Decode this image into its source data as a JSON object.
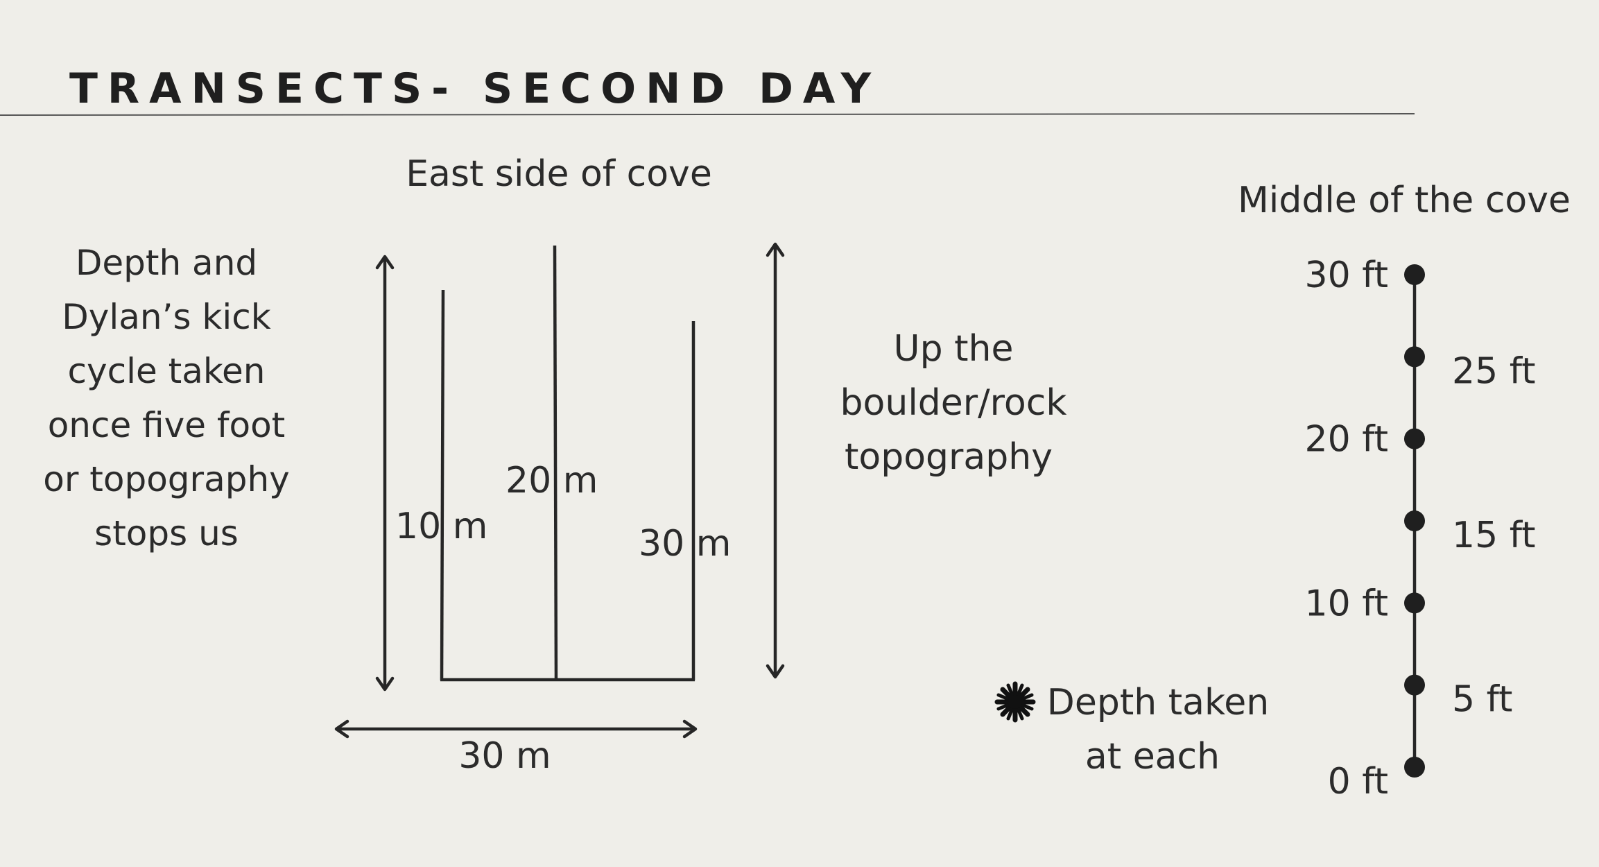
{
  "title": "TRANSECTS- SECOND DAY",
  "left_note": {
    "lines": [
      "Depth and",
      "Dylan’s kick",
      "cycle taken",
      "once five foot",
      "or topography",
      "stops us"
    ]
  },
  "east_side": {
    "heading": "East side of cove",
    "transects": [
      {
        "label": "10 m",
        "length_m": 10
      },
      {
        "label": "20 m",
        "length_m": 20
      },
      {
        "label": "30 m",
        "length_m": 30
      }
    ],
    "baseline_label": "30 m"
  },
  "middle_note": {
    "lines": [
      "Up the",
      "boulder/rock",
      "topography"
    ]
  },
  "middle_cove": {
    "heading": "Middle of the cove",
    "depth_points": [
      {
        "label": "30 ft",
        "depth_ft": 30,
        "side": "left"
      },
      {
        "label": "25 ft",
        "depth_ft": 25,
        "side": "right"
      },
      {
        "label": "20 ft",
        "depth_ft": 20,
        "side": "left"
      },
      {
        "label": "15 ft",
        "depth_ft": 15,
        "side": "right"
      },
      {
        "label": "10 ft",
        "depth_ft": 10,
        "side": "left"
      },
      {
        "label": "5 ft",
        "depth_ft": 5,
        "side": "right"
      },
      {
        "label": "0 ft",
        "depth_ft": 0,
        "side": "left"
      }
    ]
  },
  "legend": {
    "icon": "asterisk-icon",
    "lines": [
      "Depth taken",
      "at each"
    ]
  }
}
